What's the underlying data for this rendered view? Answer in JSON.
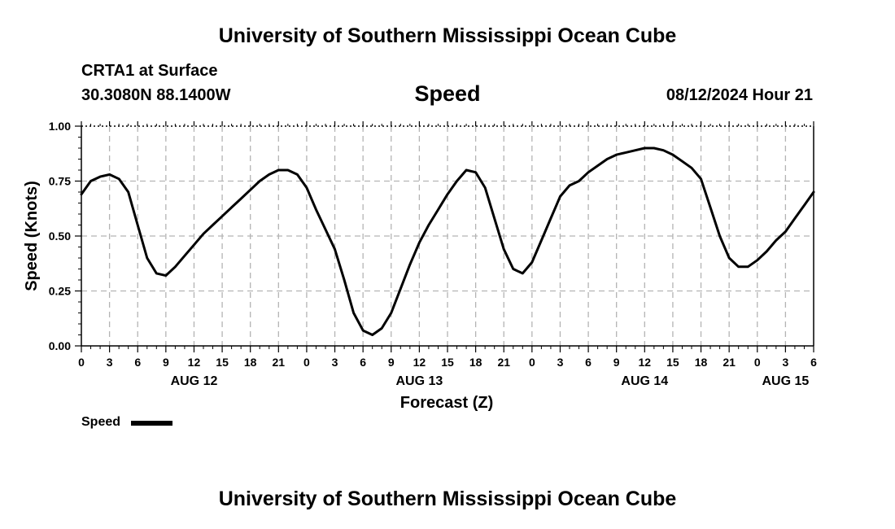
{
  "header": {
    "title": "University of Southern Mississippi Ocean Cube",
    "station": "CRTA1 at Surface",
    "location": "30.3080N  88.1400W",
    "plot_title": "Speed",
    "run_time": "08/12/2024 Hour 21"
  },
  "footer": {
    "title": "University of Southern Mississippi Ocean Cube"
  },
  "legend": {
    "label": "Speed",
    "color": "#000000"
  },
  "chart_data": {
    "type": "line",
    "title": "Speed",
    "xlabel": "Forecast (Z)",
    "ylabel": "Speed (Knots)",
    "x_unit": "hours from 00Z Aug 12",
    "xlim": [
      0,
      78
    ],
    "ylim": [
      0,
      1
    ],
    "grid": true,
    "legend_position": "bottom-left",
    "y_ticks": [
      "0.00",
      "0.25",
      "0.50",
      "0.75",
      "1.00"
    ],
    "x_ticks": [
      "0",
      "3",
      "6",
      "9",
      "12",
      "15",
      "18",
      "21",
      "0",
      "3",
      "6",
      "9",
      "12",
      "15",
      "18",
      "21",
      "0",
      "3",
      "6",
      "9",
      "12",
      "15",
      "18",
      "21",
      "0",
      "3",
      "6"
    ],
    "date_labels": [
      {
        "hour": 12,
        "label": "AUG 12"
      },
      {
        "hour": 36,
        "label": "AUG 13"
      },
      {
        "hour": 60,
        "label": "AUG 14"
      },
      {
        "hour": 75,
        "label": "AUG 15"
      }
    ],
    "series": [
      {
        "name": "Speed",
        "color": "#000000",
        "x": [
          0,
          1,
          2,
          3,
          4,
          5,
          6,
          7,
          8,
          9,
          10,
          11,
          12,
          13,
          14,
          15,
          16,
          17,
          18,
          19,
          20,
          21,
          22,
          23,
          24,
          25,
          26,
          27,
          28,
          29,
          30,
          31,
          32,
          33,
          34,
          35,
          36,
          37,
          38,
          39,
          40,
          41,
          42,
          43,
          44,
          45,
          46,
          47,
          48,
          49,
          50,
          51,
          52,
          53,
          54,
          55,
          56,
          57,
          58,
          59,
          60,
          61,
          62,
          63,
          64,
          65,
          66,
          67,
          68,
          69,
          70,
          71,
          72,
          73,
          74,
          75,
          76,
          77,
          78
        ],
        "y": [
          0.69,
          0.75,
          0.77,
          0.78,
          0.76,
          0.7,
          0.55,
          0.4,
          0.33,
          0.32,
          0.36,
          0.41,
          0.46,
          0.51,
          0.55,
          0.59,
          0.63,
          0.67,
          0.71,
          0.75,
          0.78,
          0.8,
          0.8,
          0.78,
          0.72,
          0.62,
          0.53,
          0.44,
          0.3,
          0.15,
          0.07,
          0.05,
          0.08,
          0.15,
          0.26,
          0.37,
          0.47,
          0.55,
          0.62,
          0.69,
          0.75,
          0.8,
          0.79,
          0.72,
          0.58,
          0.44,
          0.35,
          0.33,
          0.38,
          0.48,
          0.58,
          0.68,
          0.73,
          0.75,
          0.79,
          0.82,
          0.85,
          0.87,
          0.88,
          0.89,
          0.9,
          0.9,
          0.89,
          0.87,
          0.84,
          0.81,
          0.76,
          0.63,
          0.5,
          0.4,
          0.36,
          0.36,
          0.39,
          0.43,
          0.48,
          0.52,
          0.58,
          0.64,
          0.7
        ]
      }
    ]
  }
}
